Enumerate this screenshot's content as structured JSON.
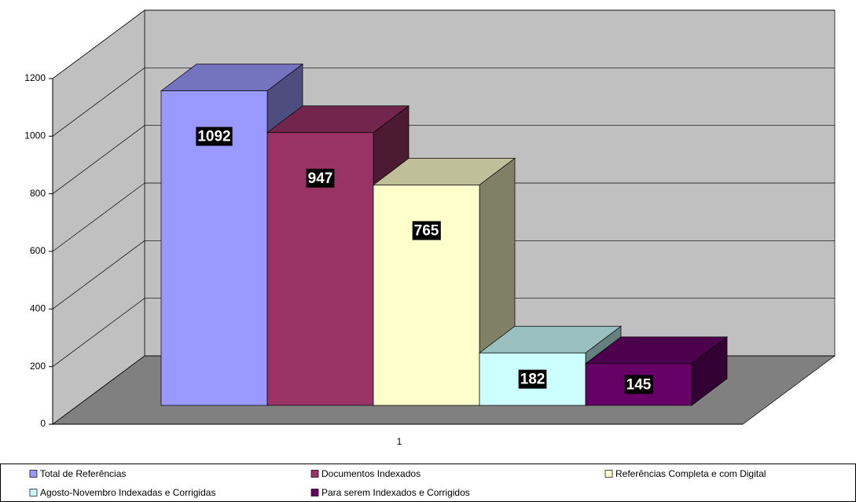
{
  "chart_data": {
    "type": "bar3d",
    "categories": [
      "1"
    ],
    "series": [
      {
        "name": "Total de Referências",
        "color": "#9999ff",
        "values": [
          1092
        ]
      },
      {
        "name": "Documentos Indexados",
        "color": "#993366",
        "values": [
          947
        ]
      },
      {
        "name": "Referências Completa e com Digital",
        "color": "#ffffcc",
        "values": [
          765
        ]
      },
      {
        "name": "Agosto-Novembro Indexadas e Corrigidas",
        "color": "#ccffff",
        "values": [
          182
        ]
      },
      {
        "name": "Para serem Indexados e Corrigidos",
        "color": "#660066",
        "values": [
          145
        ]
      }
    ],
    "ylim": [
      0,
      1200
    ],
    "yticks": [
      0,
      200,
      400,
      600,
      800,
      1000,
      1200
    ],
    "grid": true,
    "legend": "bottom"
  }
}
